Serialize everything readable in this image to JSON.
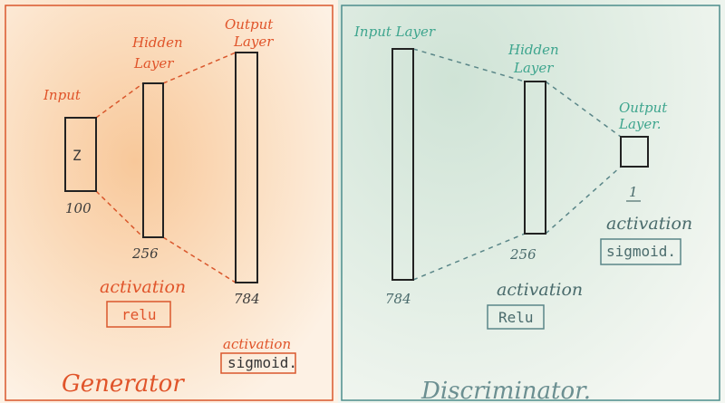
{
  "generator": {
    "title": "Generator",
    "input_label": "Input",
    "input_symbol": "Z",
    "input_size": "100",
    "hidden_label_line1": "Hidden",
    "hidden_label_line2": "Layer",
    "hidden_size": "256",
    "output_label_line1": "Output",
    "output_label_line2": "Layer",
    "output_size": "784",
    "hidden_activation_label": "activation",
    "hidden_activation": "relu",
    "output_activation_label": "activation",
    "output_activation": "sigmoid."
  },
  "discriminator": {
    "title": "Discriminator.",
    "input_label": "Input Layer",
    "input_size": "784",
    "hidden_label_line1": "Hidden",
    "hidden_label_line2": "Layer",
    "hidden_size": "256",
    "output_label_line1": "Output",
    "output_label_line2": "Layer.",
    "output_size": "1",
    "hidden_activation_label": "activation",
    "hidden_activation": "Relu",
    "output_activation_label": "activation",
    "output_activation": "sigmoid."
  },
  "colors": {
    "generator_accent": "#e0542a",
    "discriminator_accent": "#3ea58e",
    "ink": "#222222"
  }
}
